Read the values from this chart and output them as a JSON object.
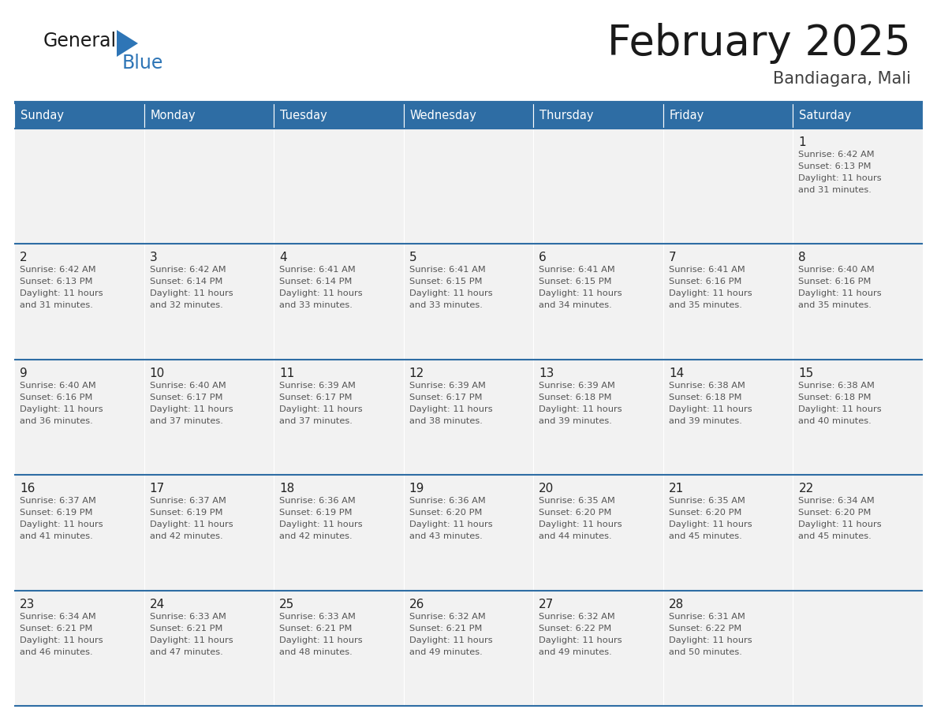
{
  "title": "February 2025",
  "subtitle": "Bandiagara, Mali",
  "header_bg": "#2E6DA4",
  "header_text_color": "#FFFFFF",
  "cell_bg": "#F2F2F2",
  "line_color": "#2E6DA4",
  "days_of_week": [
    "Sunday",
    "Monday",
    "Tuesday",
    "Wednesday",
    "Thursday",
    "Friday",
    "Saturday"
  ],
  "logo_general_color": "#1a1a1a",
  "logo_blue_color": "#2E75B6",
  "logo_triangle_color": "#2E75B6",
  "title_color": "#1a1a1a",
  "subtitle_color": "#404040",
  "day_num_color": "#222222",
  "info_text_color": "#555555",
  "calendar_data": [
    [
      null,
      null,
      null,
      null,
      null,
      null,
      {
        "day": "1",
        "sunrise": "6:42 AM",
        "sunset": "6:13 PM",
        "daylight": "11 hours",
        "daylight2": "and 31 minutes."
      }
    ],
    [
      {
        "day": "2",
        "sunrise": "6:42 AM",
        "sunset": "6:13 PM",
        "daylight": "11 hours",
        "daylight2": "and 31 minutes."
      },
      {
        "day": "3",
        "sunrise": "6:42 AM",
        "sunset": "6:14 PM",
        "daylight": "11 hours",
        "daylight2": "and 32 minutes."
      },
      {
        "day": "4",
        "sunrise": "6:41 AM",
        "sunset": "6:14 PM",
        "daylight": "11 hours",
        "daylight2": "and 33 minutes."
      },
      {
        "day": "5",
        "sunrise": "6:41 AM",
        "sunset": "6:15 PM",
        "daylight": "11 hours",
        "daylight2": "and 33 minutes."
      },
      {
        "day": "6",
        "sunrise": "6:41 AM",
        "sunset": "6:15 PM",
        "daylight": "11 hours",
        "daylight2": "and 34 minutes."
      },
      {
        "day": "7",
        "sunrise": "6:41 AM",
        "sunset": "6:16 PM",
        "daylight": "11 hours",
        "daylight2": "and 35 minutes."
      },
      {
        "day": "8",
        "sunrise": "6:40 AM",
        "sunset": "6:16 PM",
        "daylight": "11 hours",
        "daylight2": "and 35 minutes."
      }
    ],
    [
      {
        "day": "9",
        "sunrise": "6:40 AM",
        "sunset": "6:16 PM",
        "daylight": "11 hours",
        "daylight2": "and 36 minutes."
      },
      {
        "day": "10",
        "sunrise": "6:40 AM",
        "sunset": "6:17 PM",
        "daylight": "11 hours",
        "daylight2": "and 37 minutes."
      },
      {
        "day": "11",
        "sunrise": "6:39 AM",
        "sunset": "6:17 PM",
        "daylight": "11 hours",
        "daylight2": "and 37 minutes."
      },
      {
        "day": "12",
        "sunrise": "6:39 AM",
        "sunset": "6:17 PM",
        "daylight": "11 hours",
        "daylight2": "and 38 minutes."
      },
      {
        "day": "13",
        "sunrise": "6:39 AM",
        "sunset": "6:18 PM",
        "daylight": "11 hours",
        "daylight2": "and 39 minutes."
      },
      {
        "day": "14",
        "sunrise": "6:38 AM",
        "sunset": "6:18 PM",
        "daylight": "11 hours",
        "daylight2": "and 39 minutes."
      },
      {
        "day": "15",
        "sunrise": "6:38 AM",
        "sunset": "6:18 PM",
        "daylight": "11 hours",
        "daylight2": "and 40 minutes."
      }
    ],
    [
      {
        "day": "16",
        "sunrise": "6:37 AM",
        "sunset": "6:19 PM",
        "daylight": "11 hours",
        "daylight2": "and 41 minutes."
      },
      {
        "day": "17",
        "sunrise": "6:37 AM",
        "sunset": "6:19 PM",
        "daylight": "11 hours",
        "daylight2": "and 42 minutes."
      },
      {
        "day": "18",
        "sunrise": "6:36 AM",
        "sunset": "6:19 PM",
        "daylight": "11 hours",
        "daylight2": "and 42 minutes."
      },
      {
        "day": "19",
        "sunrise": "6:36 AM",
        "sunset": "6:20 PM",
        "daylight": "11 hours",
        "daylight2": "and 43 minutes."
      },
      {
        "day": "20",
        "sunrise": "6:35 AM",
        "sunset": "6:20 PM",
        "daylight": "11 hours",
        "daylight2": "and 44 minutes."
      },
      {
        "day": "21",
        "sunrise": "6:35 AM",
        "sunset": "6:20 PM",
        "daylight": "11 hours",
        "daylight2": "and 45 minutes."
      },
      {
        "day": "22",
        "sunrise": "6:34 AM",
        "sunset": "6:20 PM",
        "daylight": "11 hours",
        "daylight2": "and 45 minutes."
      }
    ],
    [
      {
        "day": "23",
        "sunrise": "6:34 AM",
        "sunset": "6:21 PM",
        "daylight": "11 hours",
        "daylight2": "and 46 minutes."
      },
      {
        "day": "24",
        "sunrise": "6:33 AM",
        "sunset": "6:21 PM",
        "daylight": "11 hours",
        "daylight2": "and 47 minutes."
      },
      {
        "day": "25",
        "sunrise": "6:33 AM",
        "sunset": "6:21 PM",
        "daylight": "11 hours",
        "daylight2": "and 48 minutes."
      },
      {
        "day": "26",
        "sunrise": "6:32 AM",
        "sunset": "6:21 PM",
        "daylight": "11 hours",
        "daylight2": "and 49 minutes."
      },
      {
        "day": "27",
        "sunrise": "6:32 AM",
        "sunset": "6:22 PM",
        "daylight": "11 hours",
        "daylight2": "and 49 minutes."
      },
      {
        "day": "28",
        "sunrise": "6:31 AM",
        "sunset": "6:22 PM",
        "daylight": "11 hours",
        "daylight2": "and 50 minutes."
      },
      null
    ]
  ]
}
